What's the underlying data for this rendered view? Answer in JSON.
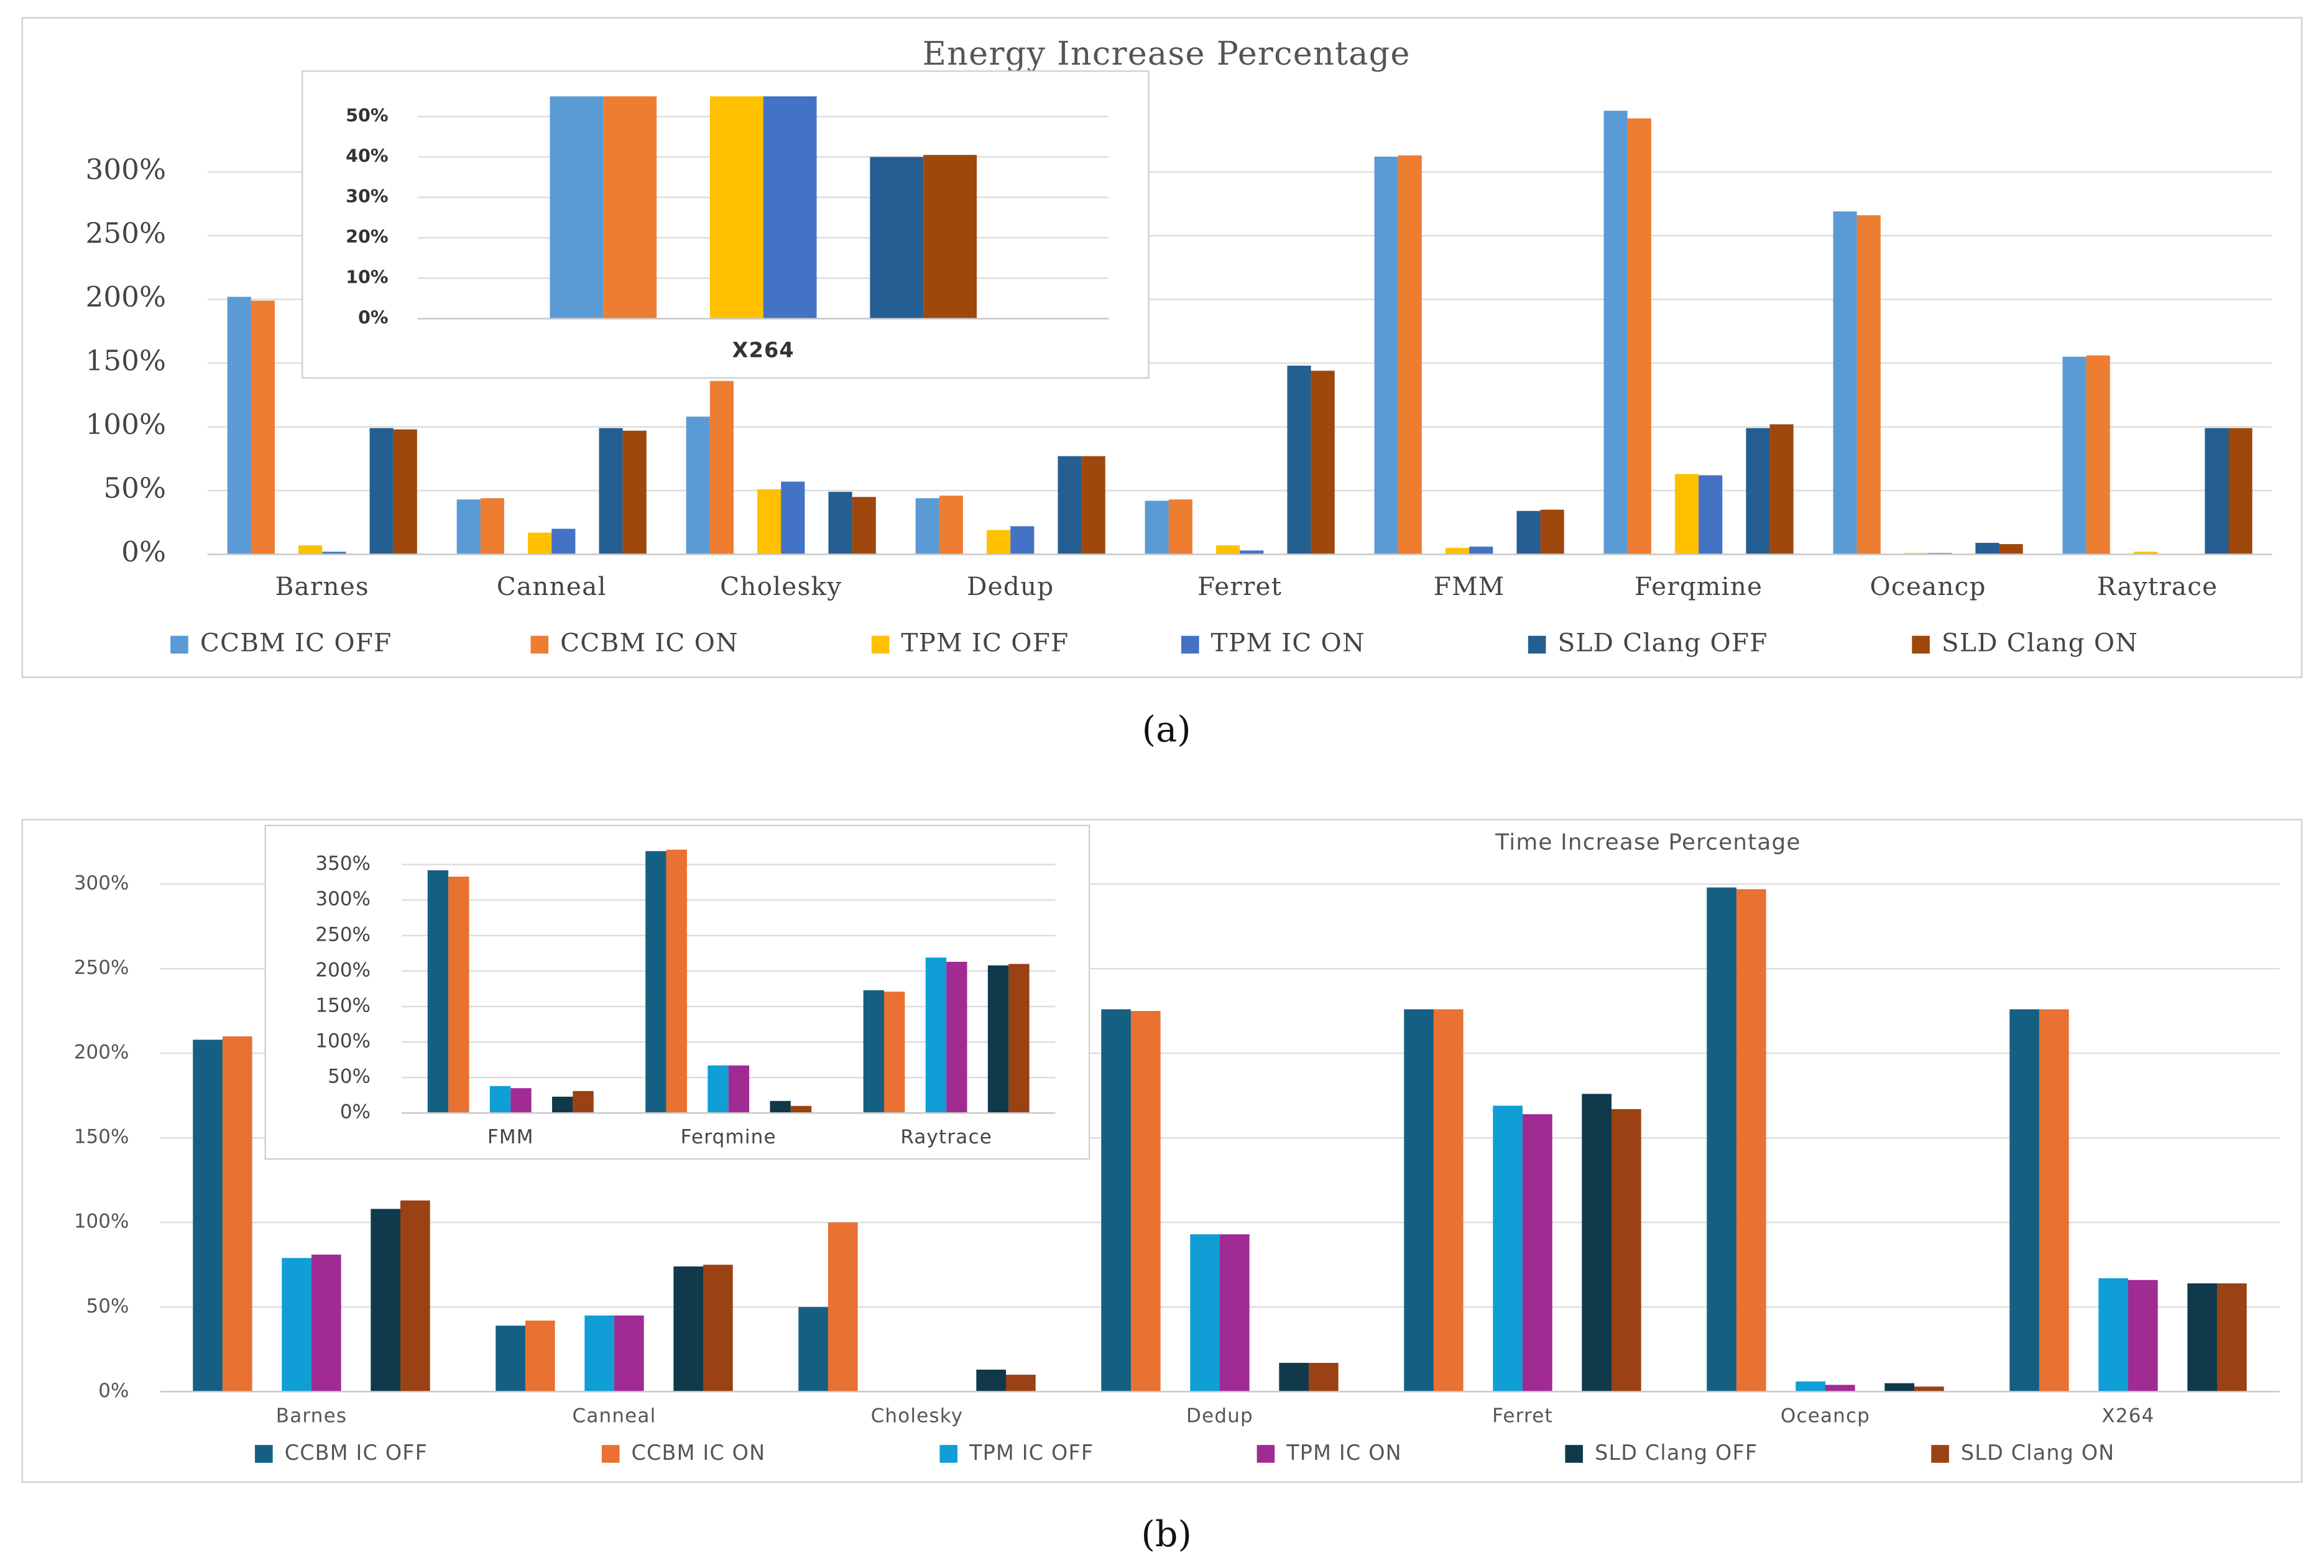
{
  "chart_data": [
    {
      "type": "bar",
      "title": "Energy Increase Percentage",
      "categories": [
        "Barnes",
        "Canneal",
        "Cholesky",
        "Dedup",
        "Ferret",
        "FMM",
        "Ferqmine",
        "Oceancp",
        "Raytrace"
      ],
      "series": [
        {
          "name": "CCBM IC OFF",
          "color": "#5b9bd5",
          "values": [
            202,
            43,
            108,
            44,
            42,
            312,
            348,
            269,
            155
          ]
        },
        {
          "name": "CCBM IC ON",
          "color": "#ed7d31",
          "values": [
            199,
            44,
            136,
            46,
            43,
            313,
            342,
            266,
            156
          ]
        },
        {
          "name": "TPM IC OFF",
          "color": "#ffc000",
          "values": [
            7,
            17,
            51,
            19,
            7,
            5,
            63,
            1,
            2
          ]
        },
        {
          "name": "TPM IC ON",
          "color": "#4472c4",
          "values": [
            2,
            20,
            57,
            22,
            3,
            6,
            62,
            1,
            0
          ]
        },
        {
          "name": "SLD Clang OFF",
          "color": "#255e91",
          "values": [
            99,
            99,
            49,
            77,
            148,
            34,
            99,
            9,
            99
          ]
        },
        {
          "name": "SLD Clang ON",
          "color": "#9e480e",
          "values": [
            98,
            97,
            45,
            77,
            144,
            35,
            102,
            8,
            99
          ]
        }
      ],
      "ylim": [
        0,
        350
      ],
      "yticks": [
        {
          "value": 0,
          "label": "0%"
        },
        {
          "value": 50,
          "label": "50%"
        },
        {
          "value": 100,
          "label": "100%"
        },
        {
          "value": 150,
          "label": "150%"
        },
        {
          "value": 200,
          "label": "200%"
        },
        {
          "value": 250,
          "label": "250%"
        },
        {
          "value": 300,
          "label": "300%"
        }
      ],
      "grid": true,
      "legend": true
    },
    {
      "type": "bar",
      "categories": [
        "X264"
      ],
      "series": [
        {
          "name": "CCBM IC OFF",
          "color": "#5b9bd5",
          "values": [
            55
          ]
        },
        {
          "name": "CCBM IC ON",
          "color": "#ed7d31",
          "values": [
            55
          ]
        },
        {
          "name": "TPM IC OFF",
          "color": "#ffc000",
          "values": [
            55
          ]
        },
        {
          "name": "TPM IC ON",
          "color": "#4472c4",
          "values": [
            55
          ]
        },
        {
          "name": "SLD Clang OFF",
          "color": "#255e91",
          "values": [
            40
          ]
        },
        {
          "name": "SLD Clang ON",
          "color": "#9e480e",
          "values": [
            40.5
          ]
        }
      ],
      "ylim": [
        0,
        55
      ],
      "yticks": [
        {
          "value": 0,
          "label": "0%"
        },
        {
          "value": 10,
          "label": "10%"
        },
        {
          "value": 20,
          "label": "20%"
        },
        {
          "value": 30,
          "label": "30%"
        },
        {
          "value": 40,
          "label": "40%"
        },
        {
          "value": 50,
          "label": "50%"
        }
      ],
      "grid": true,
      "legend": false
    },
    {
      "type": "bar",
      "title": "Time Increase Percentage",
      "categories": [
        "Barnes",
        "Canneal",
        "Cholesky",
        "Dedup",
        "Ferret",
        "Oceancp",
        "X264"
      ],
      "series": [
        {
          "name": "CCBM IC OFF",
          "color": "#156082",
          "values": [
            208,
            39,
            50,
            226,
            226,
            298,
            226
          ]
        },
        {
          "name": "CCBM IC ON",
          "color": "#e97132",
          "values": [
            210,
            42,
            100,
            225,
            226,
            297,
            226
          ]
        },
        {
          "name": "TPM IC OFF",
          "color": "#0f9ed5",
          "values": [
            79,
            45,
            0,
            93,
            169,
            6,
            67
          ]
        },
        {
          "name": "TPM IC ON",
          "color": "#a02b93",
          "values": [
            81,
            45,
            0,
            93,
            164,
            4,
            66
          ]
        },
        {
          "name": "SLD Clang OFF",
          "color": "#10394b",
          "values": [
            108,
            74,
            13,
            17,
            176,
            5,
            64
          ]
        },
        {
          "name": "SLD Clang ON",
          "color": "#9a4214",
          "values": [
            113,
            75,
            10,
            17,
            167,
            3,
            64
          ]
        }
      ],
      "ylim": [
        0,
        325
      ],
      "yticks": [
        {
          "value": 0,
          "label": "0%"
        },
        {
          "value": 50,
          "label": "50%"
        },
        {
          "value": 100,
          "label": "100%"
        },
        {
          "value": 150,
          "label": "150%"
        },
        {
          "value": 200,
          "label": "200%"
        },
        {
          "value": 250,
          "label": "250%"
        },
        {
          "value": 300,
          "label": "300%"
        }
      ],
      "grid": true,
      "legend": true
    },
    {
      "type": "bar",
      "categories": [
        "FMM",
        "Ferqmine",
        "Raytrace"
      ],
      "series": [
        {
          "name": "CCBM IC OFF",
          "color": "#156082",
          "values": [
            342,
            369,
            173
          ]
        },
        {
          "name": "CCBM IC ON",
          "color": "#e97132",
          "values": [
            333,
            371,
            171
          ]
        },
        {
          "name": "TPM IC OFF",
          "color": "#0f9ed5",
          "values": [
            38,
            67,
            219
          ]
        },
        {
          "name": "TPM IC ON",
          "color": "#a02b93",
          "values": [
            35,
            67,
            213
          ]
        },
        {
          "name": "SLD Clang OFF",
          "color": "#10394b",
          "values": [
            23,
            17,
            208
          ]
        },
        {
          "name": "SLD Clang ON",
          "color": "#9a4214",
          "values": [
            31,
            10,
            210
          ]
        }
      ],
      "ylim": [
        0,
        380
      ],
      "yticks": [
        {
          "value": 0,
          "label": "0%"
        },
        {
          "value": 50,
          "label": "50%"
        },
        {
          "value": 100,
          "label": "100%"
        },
        {
          "value": 150,
          "label": "150%"
        },
        {
          "value": 200,
          "label": "200%"
        },
        {
          "value": 250,
          "label": "250%"
        },
        {
          "value": 300,
          "label": "300%"
        },
        {
          "value": 350,
          "label": "350%"
        }
      ],
      "grid": true,
      "legend": false
    }
  ],
  "figure_labels": [
    "(a)",
    "(b)"
  ]
}
